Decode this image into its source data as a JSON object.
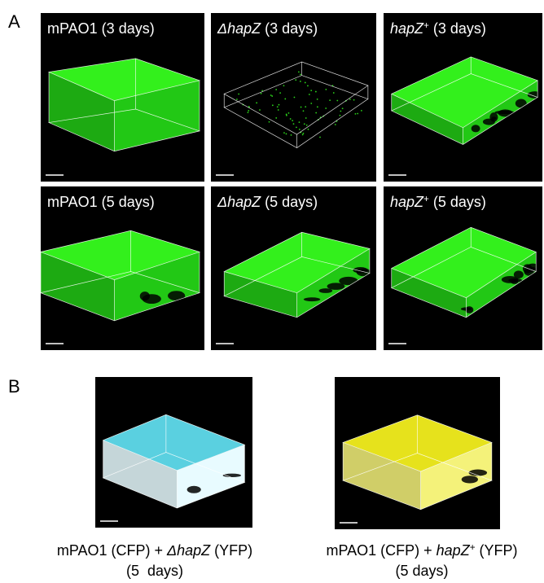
{
  "panel_a": {
    "letter": "A",
    "images": [
      {
        "label": [
          {
            "text": "mPAO1 (3 days)",
            "style": "normal"
          }
        ]
      },
      {
        "label": [
          {
            "text": "ΔhapZ",
            "style": "italic"
          },
          {
            "text": " (3 days)",
            "style": "normal"
          }
        ]
      },
      {
        "label": [
          {
            "text": "hapZ",
            "style": "italic"
          },
          {
            "text": "+",
            "style": "sup"
          },
          {
            "text": " (3 days)",
            "style": "normal"
          }
        ]
      },
      {
        "label": [
          {
            "text": "mPAO1 (5 days)",
            "style": "normal"
          }
        ]
      },
      {
        "label": [
          {
            "text": "ΔhapZ",
            "style": "italic"
          },
          {
            "text": " (5 days)",
            "style": "normal"
          }
        ]
      },
      {
        "label": [
          {
            "text": "hapZ",
            "style": "italic"
          },
          {
            "text": "+",
            "style": "sup"
          },
          {
            "text": " (5 days)",
            "style": "normal"
          }
        ]
      }
    ]
  },
  "panel_b": {
    "letter": "B",
    "images": [
      {
        "caption": [
          [
            {
              "text": "mPAO1 (CFP) + ",
              "style": "normal"
            },
            {
              "text": "ΔhapZ",
              "style": "italic"
            },
            {
              "text": " (YFP)",
              "style": "normal"
            }
          ],
          [
            {
              "text": "(5  days)",
              "style": "normal"
            }
          ]
        ]
      },
      {
        "caption": [
          [
            {
              "text": "mPAO1 (CFP) + ",
              "style": "normal"
            },
            {
              "text": "hapZ",
              "style": "italic"
            },
            {
              "text": "+",
              "style": "sup"
            },
            {
              "text": " (YFP)",
              "style": "normal"
            }
          ],
          [
            {
              "text": "(5 days)",
              "style": "normal"
            }
          ]
        ]
      }
    ]
  }
}
